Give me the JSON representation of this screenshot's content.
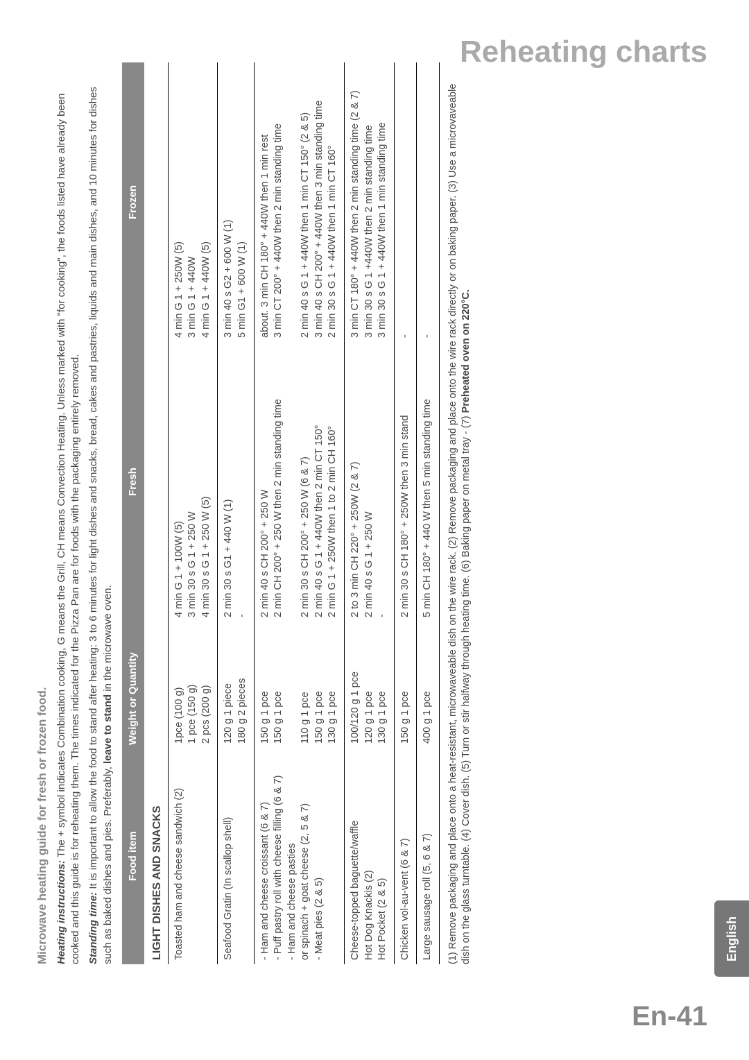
{
  "page": {
    "title": "Reheating charts",
    "number": "En-41",
    "language_tab": "English"
  },
  "intro": {
    "heading": "Microwave heating guide for fresh or frozen food.",
    "p1_label": "Heating instructions:",
    "p1": " The + symbol indicates Combination cooking, G means the Grill, CH means Convection Heating. Unless marked with \"for cooking\", the foods listed have already been cooked and this guide is for reheating them. The times indicated for the Pizza Pan are for foods with the packaging entirely removed.",
    "p2_label": "Standing time:",
    "p2a": "  It is important to allow the food to stand after heating: 3 to 6 minutes for light dishes and snacks, bread, cakes and pastries, liquids and main dishes, and 10 minutes for dishes such as baked dishes and pies. Preferably, ",
    "p2_bold": "leave to stand",
    "p2b": " in the microwave oven."
  },
  "table": {
    "headers": [
      "Food item",
      "Weight or Quantity",
      "Fresh",
      "Frozen"
    ],
    "section_title": "LIGHT DISHES AND SNACKS",
    "rows": [
      {
        "food": "Toasted ham and cheese sandwich (2)",
        "wt": "1pce (100 g)\n1 pce (150 g)\n2 pcs (200 g)",
        "fresh": "4 min G 1 + 100W (5)\n3 min 30 s G 1 + 250 W\n4 min 30 s G 1 + 250 W (5)",
        "frozen": "4 min G 1 + 250W (5)\n3 min G 1 + 440W\n4 min G 1 + 440W (5)"
      },
      {
        "food": "Seafood Gratin (In scallop shell)",
        "wt": "120 g 1 piece\n180 g 2 pieces",
        "fresh": "2 min 30 s G1 + 440 W (1)\n-",
        "frozen": "3 min 40 s G2 + 600 W (1)\n5 min G1 + 600 W (1)"
      },
      {
        "food": "- Ham and cheese croissant (6 & 7)\n- Puff pastry roll with cheese filling (6 & 7)\n- Ham and cheese pasties\nor spinach + goat cheese (2, 5 & 7)\n- Meat pies (2 & 5)",
        "wt": "150 g 1 pce\n150 g 1 pce\n\n110 g 1 pce\n150 g 1 pce\n130 g 1 pce",
        "fresh": "2 min 40 s CH 200° + 250 W\n2 min CH 200° + 250 W then 2 min standing time\n\n2 min 30 s CH 200° + 250 W (6 & 7)\n2 min 40 s G 1 + 440W then 2 min CT 150°\n2 min G 1 + 250W then 1 to 2 min CH 160°",
        "frozen": "about. 3 min CH 180° + 440W then 1 min rest\n3 min CT 200° + 440W then 2 min standing time\n\n2 min 40 s G 1 + 440W then 1 min CT 150° (2 & 5)\n3 min 40 s CH 200° + 440W then 3 min standing time\n2 min 30 s G 1 + 440W then 1 min CT 160°"
      },
      {
        "food": "Cheese-topped baguette/waffle\nHot Dog Knackis (2)\nHot Pocket (2 & 5)",
        "wt": "100/120 g 1 pce\n120 g 1 pce\n130 g 1 pce",
        "fresh": "2 to 3 min CH 220° + 250W (2 & 7)\n2 min 40 s G 1 + 250 W\n-",
        "frozen": "3 min CT 180° + 440W then 2 min standing time (2 & 7)\n3 min 30 s G 1 +440W then 2 min standing time\n3 min 30 s G 1 + 440W then 1 min standing time"
      },
      {
        "food": "Chicken vol-au-vent (6 & 7)",
        "wt": "150 g 1 pce",
        "fresh": "2 min 30 s CH 180° + 250W then 3 min stand",
        "frozen": "-"
      },
      {
        "food": "Large sausage roll (5, 6 & 7)",
        "wt": "400 g 1 pce",
        "fresh": "5 min CH 180° + 440 W then 5 min standing time",
        "frozen": "-"
      }
    ]
  },
  "footnotes": "(1) Remove packaging and place onto a heat-resistant, microwaveable dish on the wire rack. (2) Remove packaging and place onto the wire rack directly or on baking paper. (3) Use a microvaveable dish on the glass turntable.  (4) Cover dish. (5) Turn or stir halfway through heating time. (6) Baking paper on metal tray - (7) Preheated oven on 220°C.",
  "style": {
    "page_bg": "#ffffff",
    "header_bg": "#888888",
    "header_fg": "#ffffff",
    "title_color": "#aaaaaa",
    "text_color": "#444444",
    "tab_bg": "#777777"
  }
}
